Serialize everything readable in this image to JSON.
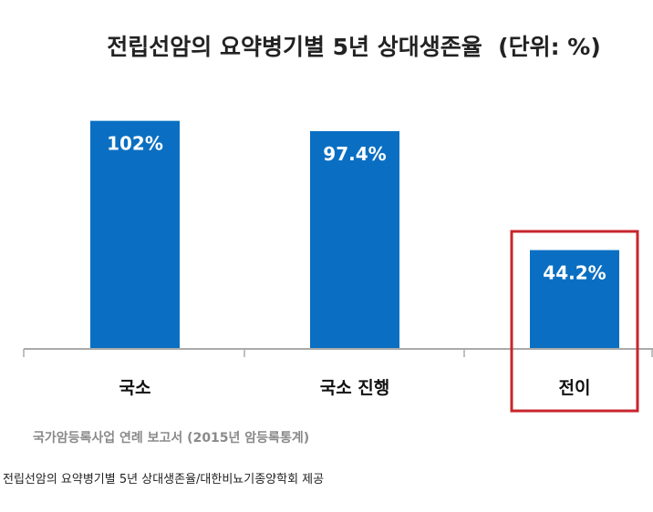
{
  "chart_data": {
    "type": "bar",
    "title": "전립선암의 요약병기별 5년 상대생존율  (단위: %)",
    "categories": [
      "국소",
      "국소 진행",
      "전이"
    ],
    "values": [
      102,
      97.4,
      44.2
    ],
    "value_labels": [
      "102%",
      "97.4%",
      "44.2%"
    ],
    "ylim": [
      0,
      110
    ],
    "grid": false,
    "legend": "none",
    "highlighted_category": "전이",
    "colors": {
      "bar": "#0a6fc2",
      "highlight_box": "#c8252c",
      "axis": "#aaaaaa"
    }
  },
  "source_note": "국가암등록사업 연례 보고서 (2015년 암등록통계)",
  "caption": "전립선암의 요약병기별 5년 상대생존율/대한비뇨기종양학회 제공"
}
